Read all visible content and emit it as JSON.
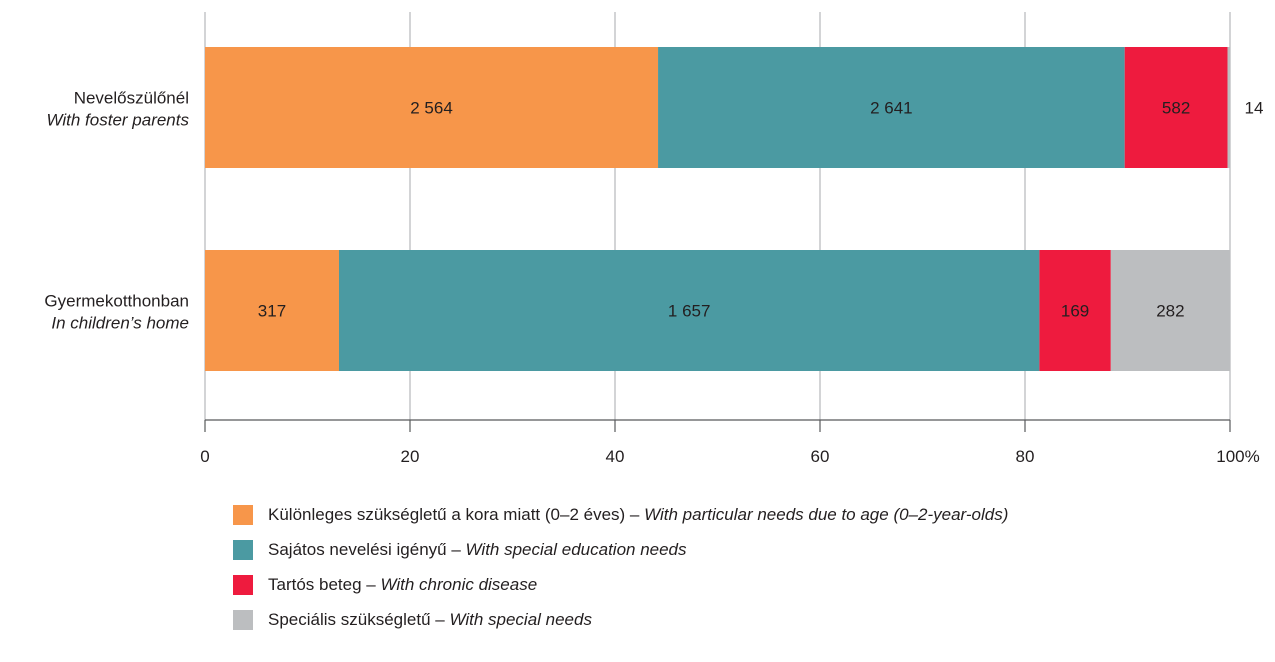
{
  "chart_data": {
    "type": "bar",
    "orientation": "horizontal",
    "stacked": "percent",
    "categories": [
      {
        "hu": "Nevelőszülőnél",
        "en": "With foster parents"
      },
      {
        "hu": "Gyermekotthonban",
        "en": "In children’s home"
      }
    ],
    "series": [
      {
        "name": {
          "hu": "Különleges szükségletű a kora miatt (0–2 éves)",
          "en": "With particular needs due to age (0–2-year-olds)"
        },
        "color": "#f7964a",
        "values": [
          2564,
          317
        ],
        "labels": [
          "2 564",
          "317"
        ]
      },
      {
        "name": {
          "hu": "Sajátos nevelési igényű",
          "en": "With special education needs"
        },
        "color": "#4b9aa2",
        "values": [
          2641,
          1657
        ],
        "labels": [
          "2 641",
          "1 657"
        ]
      },
      {
        "name": {
          "hu": "Tartós beteg",
          "en": "With chronic disease"
        },
        "color": "#ee1b3e",
        "values": [
          582,
          169
        ],
        "labels": [
          "582",
          "169"
        ]
      },
      {
        "name": {
          "hu": "Speciális szükségletű",
          "en": "With special needs"
        },
        "color": "#bcbec0",
        "values": [
          14,
          282
        ],
        "labels": [
          "14",
          "282"
        ]
      }
    ],
    "x_ticks": [
      "0",
      "20",
      "40",
      "60",
      "80",
      "100%"
    ],
    "xlim": [
      0,
      100
    ],
    "grid": true,
    "legend_position": "bottom"
  }
}
